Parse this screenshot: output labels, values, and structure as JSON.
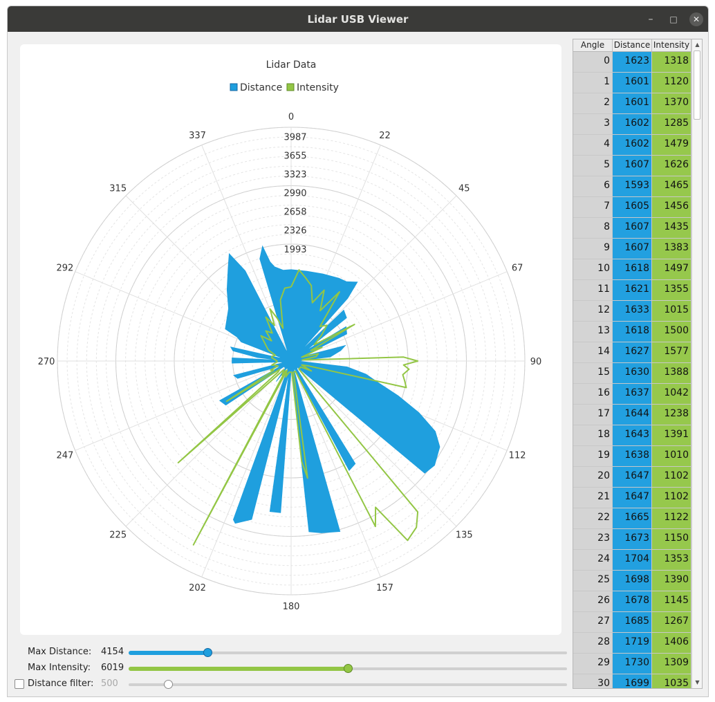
{
  "window": {
    "title": "Lidar USB Viewer"
  },
  "colors": {
    "distance": "#1f9fde",
    "intensity": "#93c645",
    "grid": "#d8d8d8"
  },
  "chart_data": {
    "type": "polar",
    "title": "Lidar Data",
    "legend": [
      "Distance",
      "Intensity"
    ],
    "angle_labels": [
      "0",
      "22",
      "45",
      "67",
      "90",
      "112",
      "135",
      "157",
      "180",
      "202",
      "225",
      "247",
      "270",
      "292",
      "315",
      "337"
    ],
    "radial_labels": [
      "1993",
      "2326",
      "2658",
      "2990",
      "3323",
      "3655",
      "3987"
    ],
    "radial_max": 4154,
    "distance_profile": [
      [
        0,
        1623
      ],
      [
        10,
        1618
      ],
      [
        20,
        1647
      ],
      [
        30,
        1699
      ],
      [
        35,
        1720
      ],
      [
        40,
        1830
      ],
      [
        42,
        1500
      ],
      [
        44,
        200
      ],
      [
        46,
        1300
      ],
      [
        52,
        1250
      ],
      [
        55,
        300
      ],
      [
        58,
        1150
      ],
      [
        64,
        1100
      ],
      [
        68,
        200
      ],
      [
        74,
        1000
      ],
      [
        78,
        900
      ],
      [
        84,
        700
      ],
      [
        86,
        200
      ],
      [
        92,
        150
      ],
      [
        96,
        1000
      ],
      [
        100,
        1350
      ],
      [
        104,
        1600
      ],
      [
        108,
        2000
      ],
      [
        112,
        2450
      ],
      [
        116,
        2850
      ],
      [
        120,
        3050
      ],
      [
        126,
        3150
      ],
      [
        130,
        3100
      ],
      [
        134,
        150
      ],
      [
        144,
        180
      ],
      [
        148,
        2150
      ],
      [
        152,
        2200
      ],
      [
        155,
        160
      ],
      [
        162,
        160
      ],
      [
        164,
        3150
      ],
      [
        170,
        3100
      ],
      [
        174,
        3050
      ],
      [
        177,
        140
      ],
      [
        180,
        150
      ],
      [
        184,
        2700
      ],
      [
        188,
        2700
      ],
      [
        190,
        180
      ],
      [
        194,
        2900
      ],
      [
        199,
        3050
      ],
      [
        200,
        3000
      ],
      [
        203,
        140
      ],
      [
        212,
        160
      ],
      [
        216,
        450
      ],
      [
        219,
        160
      ],
      [
        232,
        160
      ],
      [
        236,
        1400
      ],
      [
        241,
        1450
      ],
      [
        244,
        180
      ],
      [
        252,
        1000
      ],
      [
        256,
        1050
      ],
      [
        258,
        170
      ],
      [
        264,
        150
      ],
      [
        268,
        1050
      ],
      [
        273,
        1050
      ],
      [
        274,
        170
      ],
      [
        276,
        600
      ],
      [
        280,
        1050
      ],
      [
        283,
        1100
      ],
      [
        285,
        200
      ],
      [
        289,
        200
      ],
      [
        291,
        950
      ],
      [
        294,
        1050
      ],
      [
        296,
        1300
      ],
      [
        302,
        1350
      ],
      [
        310,
        1450
      ],
      [
        318,
        1700
      ],
      [
        326,
        2000
      ],
      [
        330,
        2200
      ],
      [
        333,
        1800
      ],
      [
        335,
        200
      ],
      [
        340,
        200
      ],
      [
        343,
        1900
      ],
      [
        346,
        2100
      ],
      [
        348,
        1800
      ],
      [
        350,
        1700
      ],
      [
        355,
        1620
      ],
      [
        360,
        1623
      ]
    ],
    "intensity_profile": [
      [
        0,
        1318
      ],
      [
        5,
        1626
      ],
      [
        10,
        1497
      ],
      [
        15,
        1388
      ],
      [
        20,
        1102
      ],
      [
        25,
        1390
      ],
      [
        30,
        1035
      ],
      [
        35,
        1500
      ],
      [
        40,
        800
      ],
      [
        45,
        900
      ],
      [
        50,
        700
      ],
      [
        55,
        500
      ],
      [
        60,
        1300
      ],
      [
        62,
        400
      ],
      [
        66,
        600
      ],
      [
        70,
        200
      ],
      [
        75,
        500
      ],
      [
        80,
        450
      ],
      [
        84,
        200
      ],
      [
        86,
        300
      ],
      [
        88,
        2000
      ],
      [
        90,
        2250
      ],
      [
        92,
        2000
      ],
      [
        94,
        2100
      ],
      [
        97,
        2000
      ],
      [
        100,
        2050
      ],
      [
        103,
        2100
      ],
      [
        106,
        300
      ],
      [
        110,
        200
      ],
      [
        116,
        400
      ],
      [
        122,
        200
      ],
      [
        130,
        200
      ],
      [
        136,
        200
      ],
      [
        140,
        3500
      ],
      [
        143,
        3700
      ],
      [
        147,
        3800
      ],
      [
        150,
        3000
      ],
      [
        153,
        3300
      ],
      [
        157,
        200
      ],
      [
        162,
        200
      ],
      [
        168,
        200
      ],
      [
        172,
        2100
      ],
      [
        174,
        1800
      ],
      [
        176,
        200
      ],
      [
        180,
        200
      ],
      [
        185,
        200
      ],
      [
        190,
        200
      ],
      [
        199,
        300
      ],
      [
        204,
        180
      ],
      [
        208,
        3700
      ],
      [
        210,
        200
      ],
      [
        212,
        300
      ],
      [
        220,
        200
      ],
      [
        228,
        2700
      ],
      [
        230,
        300
      ],
      [
        234,
        250
      ],
      [
        238,
        1350
      ],
      [
        242,
        350
      ],
      [
        246,
        400
      ],
      [
        250,
        250
      ],
      [
        255,
        300
      ],
      [
        258,
        350
      ],
      [
        262,
        300
      ],
      [
        266,
        250
      ],
      [
        270,
        250
      ],
      [
        276,
        300
      ],
      [
        280,
        350
      ],
      [
        284,
        350
      ],
      [
        290,
        300
      ],
      [
        296,
        450
      ],
      [
        300,
        500
      ],
      [
        306,
        600
      ],
      [
        310,
        700
      ],
      [
        316,
        500
      ],
      [
        320,
        700
      ],
      [
        326,
        600
      ],
      [
        330,
        900
      ],
      [
        335,
        700
      ],
      [
        338,
        1000
      ],
      [
        342,
        800
      ],
      [
        346,
        600
      ],
      [
        350,
        1100
      ],
      [
        355,
        1300
      ],
      [
        360,
        1318
      ]
    ]
  },
  "controls": {
    "max_distance": {
      "label": "Max Distance:",
      "value": "4154",
      "fraction": 0.18
    },
    "max_intensity": {
      "label": "Max Intensity:",
      "value": "6019",
      "fraction": 0.5
    },
    "distance_filter": {
      "label": "Distance filter:",
      "value": "500",
      "fraction": 0.09,
      "checked": false
    }
  },
  "table": {
    "headers": [
      "Angle",
      "Distance",
      "Intensity"
    ],
    "rows": [
      [
        "0",
        "1623",
        "1318"
      ],
      [
        "1",
        "1601",
        "1120"
      ],
      [
        "2",
        "1601",
        "1370"
      ],
      [
        "3",
        "1602",
        "1285"
      ],
      [
        "4",
        "1602",
        "1479"
      ],
      [
        "5",
        "1607",
        "1626"
      ],
      [
        "6",
        "1593",
        "1465"
      ],
      [
        "7",
        "1605",
        "1456"
      ],
      [
        "8",
        "1607",
        "1435"
      ],
      [
        "9",
        "1607",
        "1383"
      ],
      [
        "10",
        "1618",
        "1497"
      ],
      [
        "11",
        "1621",
        "1355"
      ],
      [
        "12",
        "1633",
        "1015"
      ],
      [
        "13",
        "1618",
        "1500"
      ],
      [
        "14",
        "1627",
        "1577"
      ],
      [
        "15",
        "1630",
        "1388"
      ],
      [
        "16",
        "1637",
        "1042"
      ],
      [
        "17",
        "1644",
        "1238"
      ],
      [
        "18",
        "1643",
        "1391"
      ],
      [
        "19",
        "1638",
        "1010"
      ],
      [
        "20",
        "1647",
        "1102"
      ],
      [
        "21",
        "1647",
        "1102"
      ],
      [
        "22",
        "1665",
        "1122"
      ],
      [
        "23",
        "1673",
        "1150"
      ],
      [
        "24",
        "1704",
        "1353"
      ],
      [
        "25",
        "1698",
        "1390"
      ],
      [
        "26",
        "1678",
        "1145"
      ],
      [
        "27",
        "1685",
        "1267"
      ],
      [
        "28",
        "1719",
        "1406"
      ],
      [
        "29",
        "1730",
        "1309"
      ],
      [
        "30",
        "1699",
        "1035"
      ]
    ]
  }
}
